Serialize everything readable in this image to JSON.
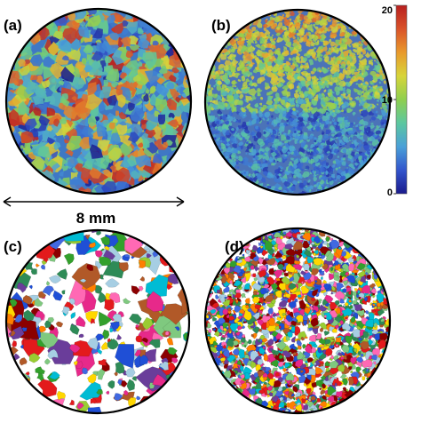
{
  "figure": {
    "panels": [
      {
        "label": "(a)",
        "style": "heatmap",
        "seed": 11,
        "count": 900
      },
      {
        "label": "(b)",
        "style": "heatmap-fine",
        "seed": 23,
        "count": 2600
      },
      {
        "label": "(c)",
        "style": "labeled-sparse",
        "seed": 37,
        "count": 320
      },
      {
        "label": "(d)",
        "style": "labeled-dense",
        "seed": 53,
        "count": 2200
      }
    ],
    "scale_bar": {
      "label": "8 mm"
    },
    "colorbar": {
      "ticks": [
        "20",
        "10",
        "0"
      ],
      "tick_values": [
        20,
        10,
        0
      ],
      "min": 0,
      "max": 20,
      "colors": [
        "#1a1a8c",
        "#3355cc",
        "#4aa0d8",
        "#5cc7a0",
        "#8fcf4f",
        "#d7d53a",
        "#e99a2c",
        "#d9532a",
        "#b81f1f"
      ]
    },
    "label_colors": [
      "#e31a1c",
      "#1f4fd6",
      "#33a02c",
      "#ff7f00",
      "#6a3d9a",
      "#b15928",
      "#e7298a",
      "#00bcd4",
      "#ffd700",
      "#7fc97f",
      "#a6cee3",
      "#8b0000",
      "#2e8b57",
      "#ff69b4",
      "#4169e1",
      "#9acd32"
    ]
  }
}
